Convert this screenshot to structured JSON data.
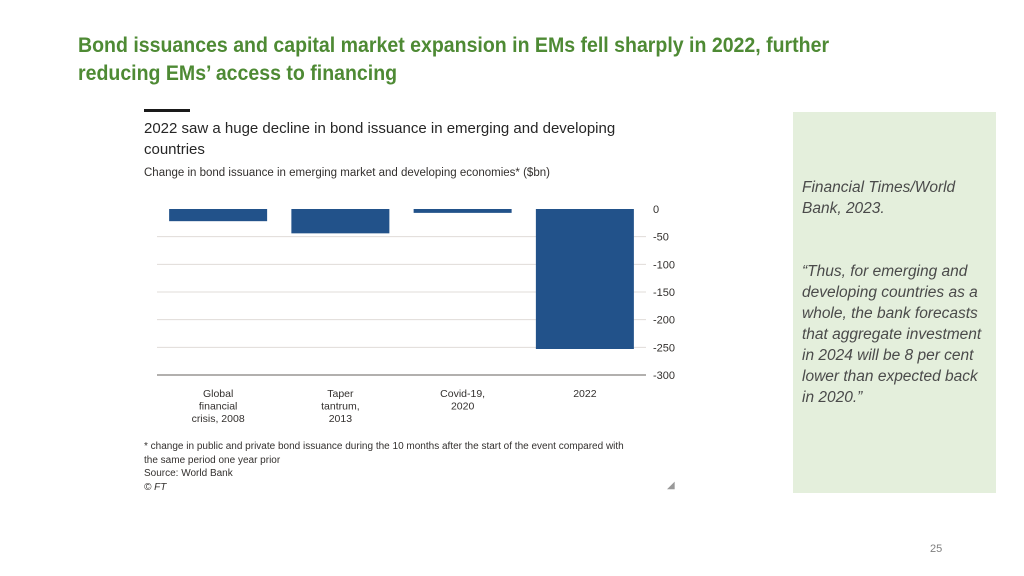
{
  "slide": {
    "title": "Bond issuances and capital market expansion in EMs fell sharply in 2022, further reducing EMs’ access to financing",
    "page_number": "25"
  },
  "quote_panel": {
    "source": "Financial Times/World Bank, 2023.",
    "text": "“Thus, for emerging and developing countries as a whole, the bank forecasts that aggregate investment in 2024 will be 8 per cent lower than expected back in 2020.”"
  },
  "chart_data": {
    "type": "bar",
    "title": "2022 saw a huge decline in bond issuance in emerging and developing countries",
    "subtitle": "Change in bond issuance in emerging market and developing economies* ($bn)",
    "categories": [
      [
        "Global",
        "financial",
        "crisis, 2008"
      ],
      [
        "Taper",
        "tantrum,",
        "2013"
      ],
      [
        "Covid-19,",
        "2020"
      ],
      [
        "2022"
      ]
    ],
    "values": [
      -22,
      -44,
      -7,
      -253
    ],
    "ylim": [
      -300,
      0
    ],
    "yticks": [
      0,
      -50,
      -100,
      -150,
      -200,
      -250,
      -300
    ],
    "ytick_labels": [
      "0",
      "-50",
      "-100",
      "-150",
      "-200",
      "-250",
      "-300"
    ],
    "y_axis_side": "right",
    "grid": true,
    "bar_color": "#22528a",
    "grid_color": "#e0dcd8",
    "footnote": [
      "* change in public and private bond issuance during the 10 months after the start of the event compared with",
      "the same period one year prior",
      "Source: World Bank"
    ],
    "credit": "© FT"
  }
}
